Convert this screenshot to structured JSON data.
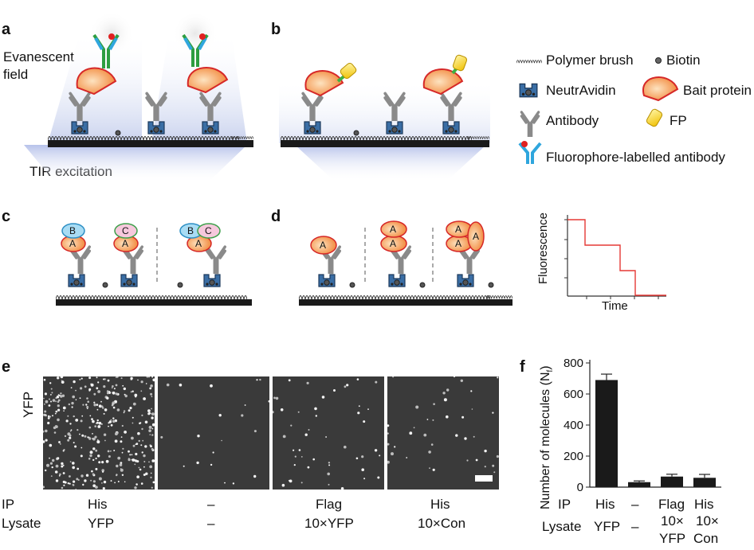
{
  "panels": {
    "a": "a",
    "b": "b",
    "c": "c",
    "d": "d",
    "e": "e",
    "f": "f"
  },
  "panel_a": {
    "evanescent_line1": "Evanescent",
    "evanescent_line2": "field",
    "tir": "TIR excitation"
  },
  "legend": {
    "polymer_brush": "Polymer brush",
    "biotin": "Biotin",
    "neutravidin": "NeutrAvidin",
    "bait_protein": "Bait protein",
    "antibody": "Antibody",
    "fp": "FP",
    "fluor_antibody": "Fluorophore-labelled antibody"
  },
  "panel_c": {
    "A": "A",
    "B": "B",
    "C": "C"
  },
  "panel_d": {
    "A": "A"
  },
  "trace": {
    "ylabel": "Fluorescence",
    "xlabel": "Time",
    "line_color": "#e53935"
  },
  "panel_e": {
    "ylabel": "YFP",
    "row_labels": [
      "IP",
      "Lysate"
    ],
    "ip": [
      "His",
      "–",
      "Flag",
      "His"
    ],
    "lysate": [
      "YFP",
      "–",
      "10×YFP",
      "10×Con"
    ],
    "spot_density": [
      0.9,
      0.05,
      0.12,
      0.1
    ]
  },
  "panel_f": {
    "row_ip": "IP",
    "row_lysate": "Lysate",
    "ip": [
      "His",
      "–",
      "Flag",
      "His"
    ],
    "lysate_line1": [
      "YFP",
      "–",
      "10×",
      "10×"
    ],
    "lysate_line2": [
      "",
      "",
      "YFP",
      "Con"
    ]
  },
  "chart_data": {
    "type": "bar",
    "categories": [
      "His / YFP",
      "– / –",
      "Flag / 10×YFP",
      "His / 10×Con"
    ],
    "values": [
      690,
      32,
      68,
      60
    ],
    "errors": [
      38,
      8,
      15,
      22
    ],
    "ylabel": "Number of molecules (N",
    "ylabel_sub": "f",
    "ylabel_close": ")",
    "ylim": [
      0,
      800
    ],
    "yticks": [
      "0",
      "200",
      "400",
      "600",
      "800"
    ],
    "bar_color": "#1a1a1a"
  }
}
